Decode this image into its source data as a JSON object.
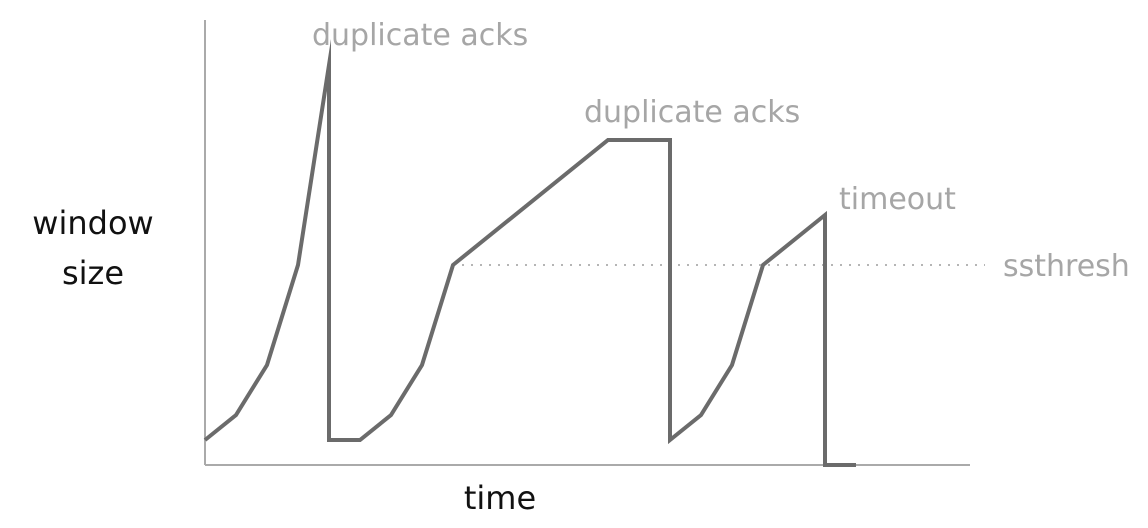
{
  "chart_data": {
    "type": "line",
    "title": "",
    "xlabel": "time",
    "ylabel_lines": [
      "window",
      "size"
    ],
    "xlim": [
      0,
      25
    ],
    "ylim": [
      0,
      16
    ],
    "grid": false,
    "series": [
      {
        "points": [
          [
            0,
            1
          ],
          [
            1,
            2
          ],
          [
            2,
            4
          ],
          [
            3,
            8
          ],
          [
            4,
            16
          ],
          [
            4,
            1
          ],
          [
            5,
            1
          ],
          [
            6,
            2
          ],
          [
            7,
            4
          ],
          [
            8,
            8
          ],
          [
            13,
            13
          ],
          [
            15,
            13
          ],
          [
            15,
            1
          ],
          [
            16,
            2
          ],
          [
            17,
            4
          ],
          [
            18,
            8
          ],
          [
            20,
            10
          ],
          [
            20,
            0
          ],
          [
            21,
            0
          ]
        ],
        "color": "#6b6b6b"
      }
    ],
    "reference_lines": [
      {
        "label": "ssthresh",
        "y": 8,
        "x_start": 8,
        "x_end": 25,
        "style": "dotted",
        "color": "#b5b5b5"
      }
    ],
    "annotations": [
      {
        "text": "duplicate acks",
        "x": 4,
        "y": 16
      },
      {
        "text": "duplicate acks",
        "x": 14,
        "y": 13
      },
      {
        "text": "timeout",
        "x": 20,
        "y": 10
      }
    ],
    "annotation_color": "#a6a6a6",
    "axis_color": "#aaaaaa"
  }
}
